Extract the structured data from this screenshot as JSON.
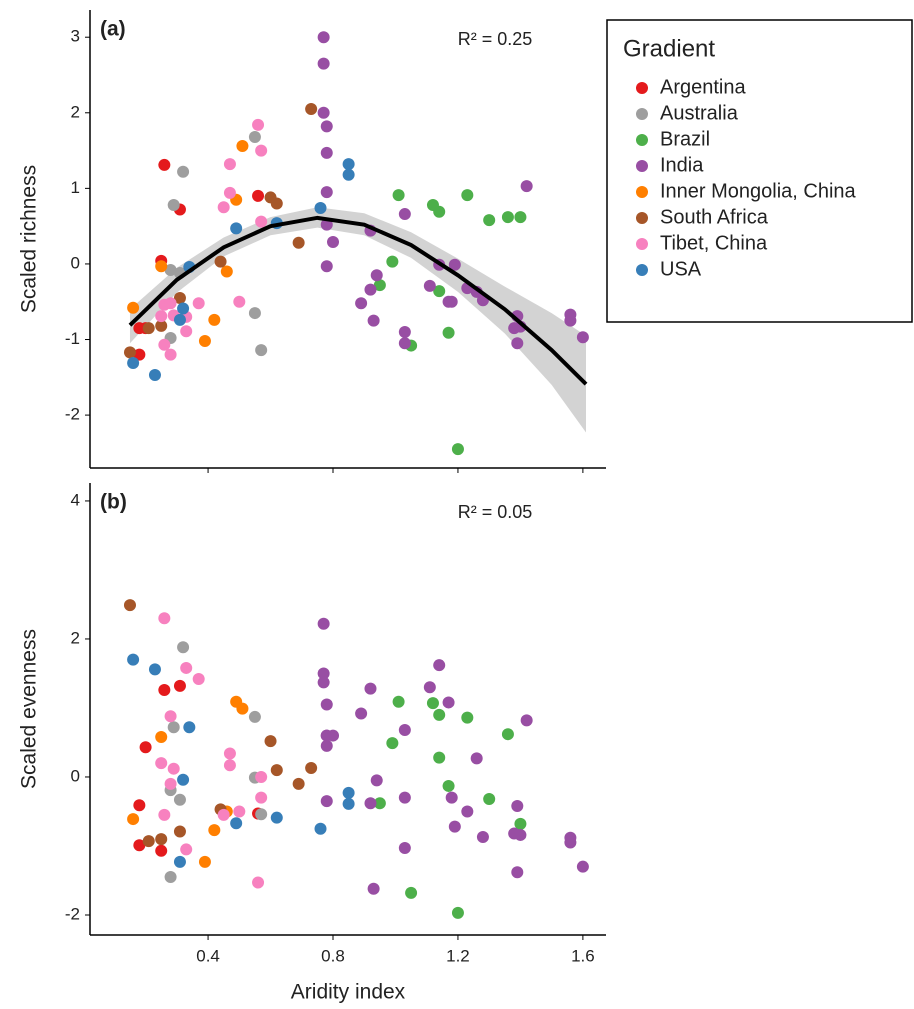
{
  "chart_data": [
    {
      "type": "scatter",
      "panel_label": "(a)",
      "annotation": "R² = 0.25",
      "y_label": "Scaled richness",
      "legend_title": "Gradient",
      "xlim": [
        0.022,
        1.674
      ],
      "xticks": [
        0.4,
        0.8,
        1.2,
        1.6
      ],
      "ylim": [
        -2.7,
        3.36
      ],
      "yticks": [
        -2,
        -1,
        0,
        1,
        2,
        3
      ],
      "series": [
        {
          "name": "Argentina",
          "color": "#e41a1c",
          "x": [
            0.26,
            0.31,
            0.25,
            0.18,
            0.2,
            0.18,
            0.56
          ],
          "values": [
            1.31,
            0.72,
            0.04,
            -0.85,
            -0.85,
            -1.2,
            0.9
          ]
        },
        {
          "name": "Australia",
          "color": "#9e9e9e",
          "x": [
            0.32,
            0.29,
            0.28,
            0.31,
            0.28,
            0.55,
            0.57,
            0.55
          ],
          "values": [
            1.22,
            0.78,
            -0.08,
            -0.12,
            -0.98,
            -0.65,
            -1.14,
            1.68
          ]
        },
        {
          "name": "Brazil",
          "color": "#4daf4a",
          "x": [
            1.01,
            0.99,
            0.95,
            1.05,
            1.12,
            1.14,
            1.14,
            1.17,
            1.23,
            1.3,
            1.36,
            1.4,
            1.2
          ],
          "values": [
            0.91,
            0.03,
            -0.28,
            -1.08,
            0.78,
            0.69,
            -0.36,
            -0.91,
            0.91,
            0.58,
            0.62,
            0.62,
            -2.45
          ]
        },
        {
          "name": "India",
          "color": "#984ea3",
          "x": [
            0.77,
            0.77,
            0.77,
            0.78,
            0.78,
            0.78,
            0.78,
            0.78,
            0.8,
            0.89,
            0.92,
            0.94,
            0.92,
            0.93,
            1.03,
            1.03,
            1.03,
            1.11,
            1.14,
            1.17,
            1.19,
            1.18,
            1.23,
            1.26,
            1.28,
            1.38,
            1.39,
            1.4,
            1.39,
            1.42,
            1.56,
            1.56,
            1.6
          ],
          "values": [
            3.0,
            2.65,
            2.0,
            1.82,
            1.47,
            0.95,
            0.52,
            -0.03,
            0.29,
            -0.52,
            0.44,
            -0.15,
            -0.34,
            -0.75,
            0.66,
            -0.9,
            -1.05,
            -0.29,
            -0.01,
            -0.5,
            -0.01,
            -0.5,
            -0.32,
            -0.37,
            -0.48,
            -0.85,
            -0.69,
            -0.83,
            -1.05,
            1.03,
            -0.67,
            -0.75,
            -0.97
          ]
        },
        {
          "name": "Inner Mongolia, China",
          "color": "#ff7f00",
          "x": [
            0.16,
            0.25,
            0.42,
            0.39,
            0.49,
            0.51,
            0.46
          ],
          "values": [
            -0.58,
            -0.03,
            -0.74,
            -1.02,
            0.85,
            1.56,
            -0.1
          ]
        },
        {
          "name": "South Africa",
          "color": "#a65628",
          "x": [
            0.73,
            0.6,
            0.62,
            0.69,
            0.25,
            0.21,
            0.15,
            0.31,
            0.44
          ],
          "values": [
            2.05,
            0.88,
            0.8,
            0.28,
            -0.82,
            -0.85,
            -1.17,
            -0.45,
            0.03
          ]
        },
        {
          "name": "Tibet, China",
          "color": "#f781bf",
          "x": [
            0.56,
            0.57,
            0.47,
            0.47,
            0.45,
            0.57,
            0.5,
            0.26,
            0.28,
            0.33,
            0.37,
            0.25,
            0.29,
            0.28,
            0.26,
            0.33
          ],
          "values": [
            1.84,
            1.5,
            1.32,
            0.94,
            0.75,
            0.56,
            -0.5,
            -0.54,
            -0.52,
            -0.7,
            -0.52,
            -0.69,
            -0.68,
            -1.2,
            -1.07,
            -0.89
          ]
        },
        {
          "name": "USA",
          "color": "#377eb8",
          "x": [
            0.85,
            0.85,
            0.76,
            0.62,
            0.49,
            0.34,
            0.32,
            0.31,
            0.16,
            0.23
          ],
          "values": [
            1.32,
            1.18,
            0.74,
            0.54,
            0.47,
            -0.04,
            -0.59,
            -0.74,
            -1.31,
            -1.47
          ]
        }
      ],
      "fit": {
        "x": [
          0.15,
          0.3,
          0.45,
          0.6,
          0.75,
          0.9,
          1.05,
          1.2,
          1.35,
          1.5,
          1.61
        ],
        "y": [
          -0.81,
          -0.21,
          0.22,
          0.5,
          0.61,
          0.52,
          0.25,
          -0.15,
          -0.6,
          -1.14,
          -1.59
        ],
        "upper": [
          -0.6,
          -0.05,
          0.35,
          0.62,
          0.75,
          0.67,
          0.42,
          0.07,
          -0.3,
          -0.65,
          -0.95
        ],
        "lower": [
          -1.05,
          -0.38,
          0.1,
          0.38,
          0.48,
          0.38,
          0.08,
          -0.37,
          -0.92,
          -1.6,
          -2.23
        ]
      }
    },
    {
      "type": "scatter",
      "panel_label": "(b)",
      "annotation": "R² = 0.05",
      "y_label": "Scaled evenness",
      "x_label": "Aridity index",
      "xlim": [
        0.022,
        1.674
      ],
      "xticks": [
        0.4,
        0.8,
        1.2,
        1.6
      ],
      "ylim": [
        -2.29,
        4.26
      ],
      "yticks": [
        -2,
        0,
        2,
        4
      ],
      "series": [
        {
          "color": "#e41a1c",
          "x": [
            0.26,
            0.31,
            0.2,
            0.18,
            0.18,
            0.25,
            0.56
          ],
          "values": [
            1.26,
            1.32,
            0.43,
            -0.41,
            -0.99,
            -1.07,
            -0.53
          ]
        },
        {
          "color": "#9e9e9e",
          "x": [
            0.32,
            0.29,
            0.28,
            0.31,
            0.28,
            0.55,
            0.57,
            0.55
          ],
          "values": [
            1.88,
            0.72,
            -0.19,
            -0.33,
            -1.45,
            -0.01,
            -0.54,
            0.87
          ]
        },
        {
          "color": "#4daf4a",
          "x": [
            1.01,
            0.99,
            0.95,
            1.05,
            1.12,
            1.14,
            1.14,
            1.17,
            1.23,
            1.3,
            1.36,
            1.4,
            1.2
          ],
          "values": [
            1.09,
            0.49,
            -0.38,
            -1.68,
            1.07,
            0.9,
            0.28,
            -0.13,
            0.86,
            -0.32,
            0.62,
            -0.68,
            -1.97
          ]
        },
        {
          "color": "#984ea3",
          "x": [
            0.77,
            0.77,
            0.77,
            0.78,
            0.78,
            0.78,
            0.78,
            0.78,
            0.8,
            0.89,
            0.92,
            0.94,
            0.92,
            0.93,
            1.03,
            1.03,
            1.03,
            1.11,
            1.14,
            1.17,
            1.19,
            1.18,
            1.23,
            1.26,
            1.28,
            1.38,
            1.39,
            1.4,
            1.39,
            1.42,
            1.56,
            1.56,
            1.6
          ],
          "values": [
            2.22,
            1.5,
            1.37,
            1.05,
            0.6,
            0.45,
            -0.35,
            0.6,
            0.6,
            0.92,
            1.28,
            -0.05,
            -0.38,
            -1.62,
            0.68,
            -0.3,
            -1.03,
            1.3,
            1.62,
            1.08,
            -0.72,
            -0.3,
            -0.5,
            0.27,
            -0.87,
            -0.82,
            -0.42,
            -0.84,
            -1.38,
            0.82,
            -0.88,
            -0.95,
            -1.3
          ]
        },
        {
          "color": "#ff7f00",
          "x": [
            0.16,
            0.25,
            0.42,
            0.39,
            0.49,
            0.51,
            0.46
          ],
          "values": [
            -0.61,
            0.58,
            -0.77,
            -1.23,
            1.09,
            0.99,
            -0.5
          ]
        },
        {
          "color": "#a65628",
          "x": [
            0.73,
            0.6,
            0.62,
            0.69,
            0.25,
            0.21,
            0.15,
            0.31,
            0.44
          ],
          "values": [
            0.13,
            0.52,
            0.1,
            -0.1,
            -0.9,
            -0.93,
            2.49,
            -0.79,
            -0.47
          ]
        },
        {
          "color": "#f781bf",
          "x": [
            0.56,
            0.57,
            0.47,
            0.47,
            0.45,
            0.57,
            0.5,
            0.26,
            0.28,
            0.33,
            0.37,
            0.25,
            0.29,
            0.28,
            0.26,
            0.33
          ],
          "values": [
            -1.53,
            0.0,
            0.17,
            0.34,
            -0.55,
            -0.3,
            -0.5,
            2.3,
            0.88,
            1.58,
            1.42,
            0.2,
            0.12,
            -0.1,
            -0.55,
            -1.05
          ]
        },
        {
          "color": "#377eb8",
          "x": [
            0.85,
            0.85,
            0.76,
            0.62,
            0.49,
            0.34,
            0.32,
            0.31,
            0.16,
            0.23
          ],
          "values": [
            -0.23,
            -0.39,
            -0.75,
            -0.59,
            -0.67,
            0.72,
            -0.04,
            -1.23,
            1.7,
            1.56
          ]
        }
      ]
    }
  ]
}
